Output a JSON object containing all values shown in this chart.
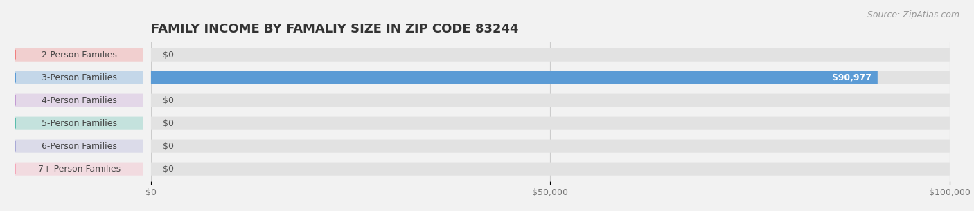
{
  "title": "FAMILY INCOME BY FAMALIY SIZE IN ZIP CODE 83244",
  "source": "Source: ZipAtlas.com",
  "categories": [
    "2-Person Families",
    "3-Person Families",
    "4-Person Families",
    "5-Person Families",
    "6-Person Families",
    "7+ Person Families"
  ],
  "values": [
    0,
    90977,
    0,
    0,
    0,
    0
  ],
  "bar_colors": [
    "#f08080",
    "#5b9bd5",
    "#c39bd3",
    "#5bbdad",
    "#a9a9d6",
    "#f4a7b9"
  ],
  "xlim": [
    0,
    100000
  ],
  "xticks": [
    0,
    50000,
    100000
  ],
  "xtick_labels": [
    "$0",
    "$50,000",
    "$100,000"
  ],
  "background_color": "#f2f2f2",
  "bar_bg_color": "#e2e2e2",
  "title_fontsize": 13,
  "source_fontsize": 9,
  "tick_fontsize": 9,
  "label_fontsize": 9,
  "value_label_color_zero": "#555555",
  "value_label_color_nonzero": "#ffffff",
  "bar_height": 0.58
}
